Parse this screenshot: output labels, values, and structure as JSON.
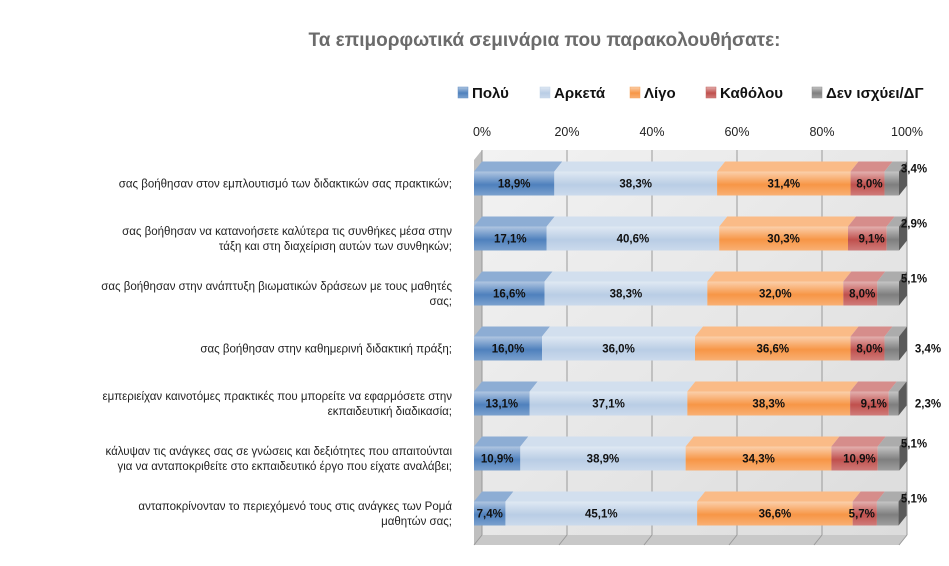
{
  "chart_data": {
    "type": "bar",
    "orientation": "horizontal",
    "stacked": true,
    "percent_stacked": true,
    "title": "Τα επιμορφωτικά σεμινάρια που παρακολουθήσατε:",
    "x_ticks": [
      "0%",
      "20%",
      "40%",
      "60%",
      "80%",
      "100%"
    ],
    "xlim": [
      0,
      100
    ],
    "grid": true,
    "legend_position": "top",
    "categories": [
      [
        "σας βοήθησαν στον εμπλουτισμό των διδακτικών σας πρακτικών;"
      ],
      [
        "σας βοήθησαν να κατανοήσετε καλύτερα τις συνθήκες μέσα στην",
        "τάξη και στη διαχείριση αυτών των συνθηκών;"
      ],
      [
        "σας βοήθησαν στην ανάπτυξη βιωματικών δράσεων με τους μαθητές",
        "σας;"
      ],
      [
        "σας βοήθησαν στην καθημερινή διδακτική πράξη;"
      ],
      [
        "εμπεριείχαν καινοτόμες πρακτικές που μπορείτε να εφαρμόσετε στην",
        "εκπαιδευτική διαδικασία;"
      ],
      [
        "κάλυψαν τις ανάγκες σας σε γνώσεις και δεξιότητες που απαιτούνται",
        "για να ανταποκριθείτε στο εκπαιδευτικό έργο που είχατε αναλάβει;"
      ],
      [
        "ανταποκρίνονταν το περιεχόμενό τους στις ανάγκες των Ρομά",
        "μαθητών σας;"
      ]
    ],
    "series": [
      {
        "name": "Πολύ",
        "color": "#4f81bd",
        "values": [
          18.9,
          17.1,
          16.6,
          16.0,
          13.1,
          10.9,
          7.4
        ],
        "labels": [
          "18,9%",
          "17,1%",
          "16,6%",
          "16,0%",
          "13,1%",
          "10,9%",
          "7,4%"
        ]
      },
      {
        "name": "Αρκετά",
        "color": "#b9cde5",
        "values": [
          38.3,
          40.6,
          38.3,
          36.0,
          37.1,
          38.9,
          45.1
        ],
        "labels": [
          "38,3%",
          "40,6%",
          "38,3%",
          "36,0%",
          "37,1%",
          "38,9%",
          "45,1%"
        ]
      },
      {
        "name": "Λίγο",
        "color": "#f79646",
        "values": [
          31.4,
          30.3,
          32.0,
          36.6,
          38.3,
          34.3,
          36.6
        ],
        "labels": [
          "31,4%",
          "30,3%",
          "32,0%",
          "36,6%",
          "38,3%",
          "34,3%",
          "36,6%"
        ]
      },
      {
        "name": "Καθόλου",
        "color": "#c0504d",
        "values": [
          8.0,
          9.1,
          8.0,
          8.0,
          9.1,
          10.9,
          5.7
        ],
        "labels": [
          "8,0%",
          "9,1%",
          "8,0%",
          "8,0%",
          "9,1%",
          "10,9%",
          "5,7%"
        ]
      },
      {
        "name": "Δεν ισχύει/ΔΓ",
        "color": "#7f7f7f",
        "values": [
          3.4,
          2.9,
          5.1,
          3.4,
          2.3,
          5.1,
          5.1
        ],
        "labels": [
          "3,4%",
          "2,9%",
          "5,1%",
          "3,4%",
          "2,3%",
          "5,1%",
          "5,1%"
        ]
      }
    ]
  }
}
